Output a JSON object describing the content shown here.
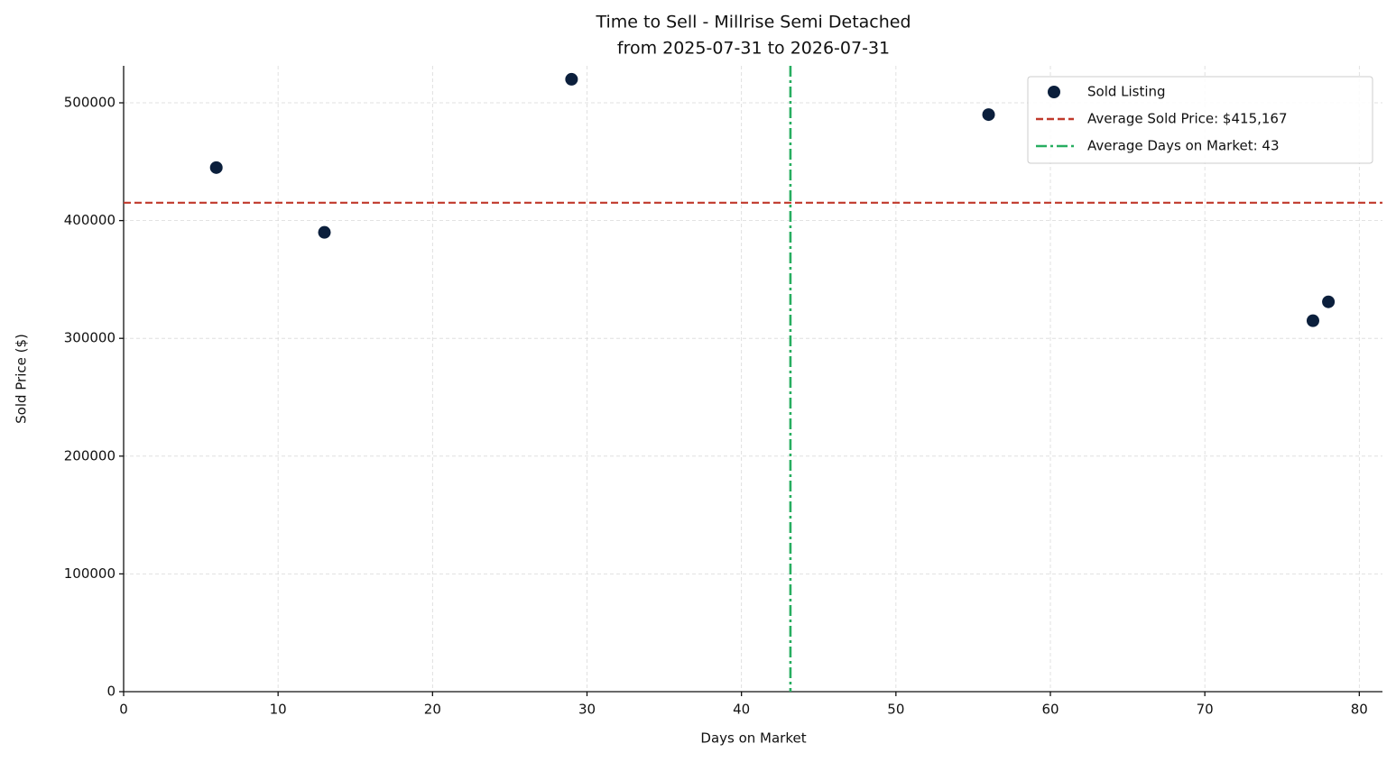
{
  "chart_data": {
    "type": "scatter",
    "title": "Time to Sell - Millrise Semi Detached",
    "subtitle": "from 2025-07-31 to 2026-07-31",
    "x_label": "Days on Market",
    "y_label": "Sold Price ($)",
    "series": [
      {
        "name": "Sold Listing",
        "color": "#0b1f3c",
        "x": [
          6,
          13,
          29,
          56,
          77,
          78
        ],
        "values": [
          445000,
          390000,
          520000,
          490000,
          315000,
          331000
        ]
      }
    ],
    "hlines": [
      {
        "name": "Average Sold Price: $415,167",
        "value": 415167,
        "color": "#c0392b"
      }
    ],
    "vlines": [
      {
        "name": "Average Days on Market: 43",
        "value": 43.17,
        "color": "#27ae60"
      }
    ],
    "xlim": [
      0,
      81.5
    ],
    "ylim": [
      0,
      531400
    ],
    "xticks": [
      0,
      10,
      20,
      30,
      40,
      50,
      60,
      70,
      80
    ],
    "yticks": [
      0,
      100000,
      200000,
      300000,
      400000,
      500000
    ],
    "grid": true,
    "legend": "upper right"
  }
}
